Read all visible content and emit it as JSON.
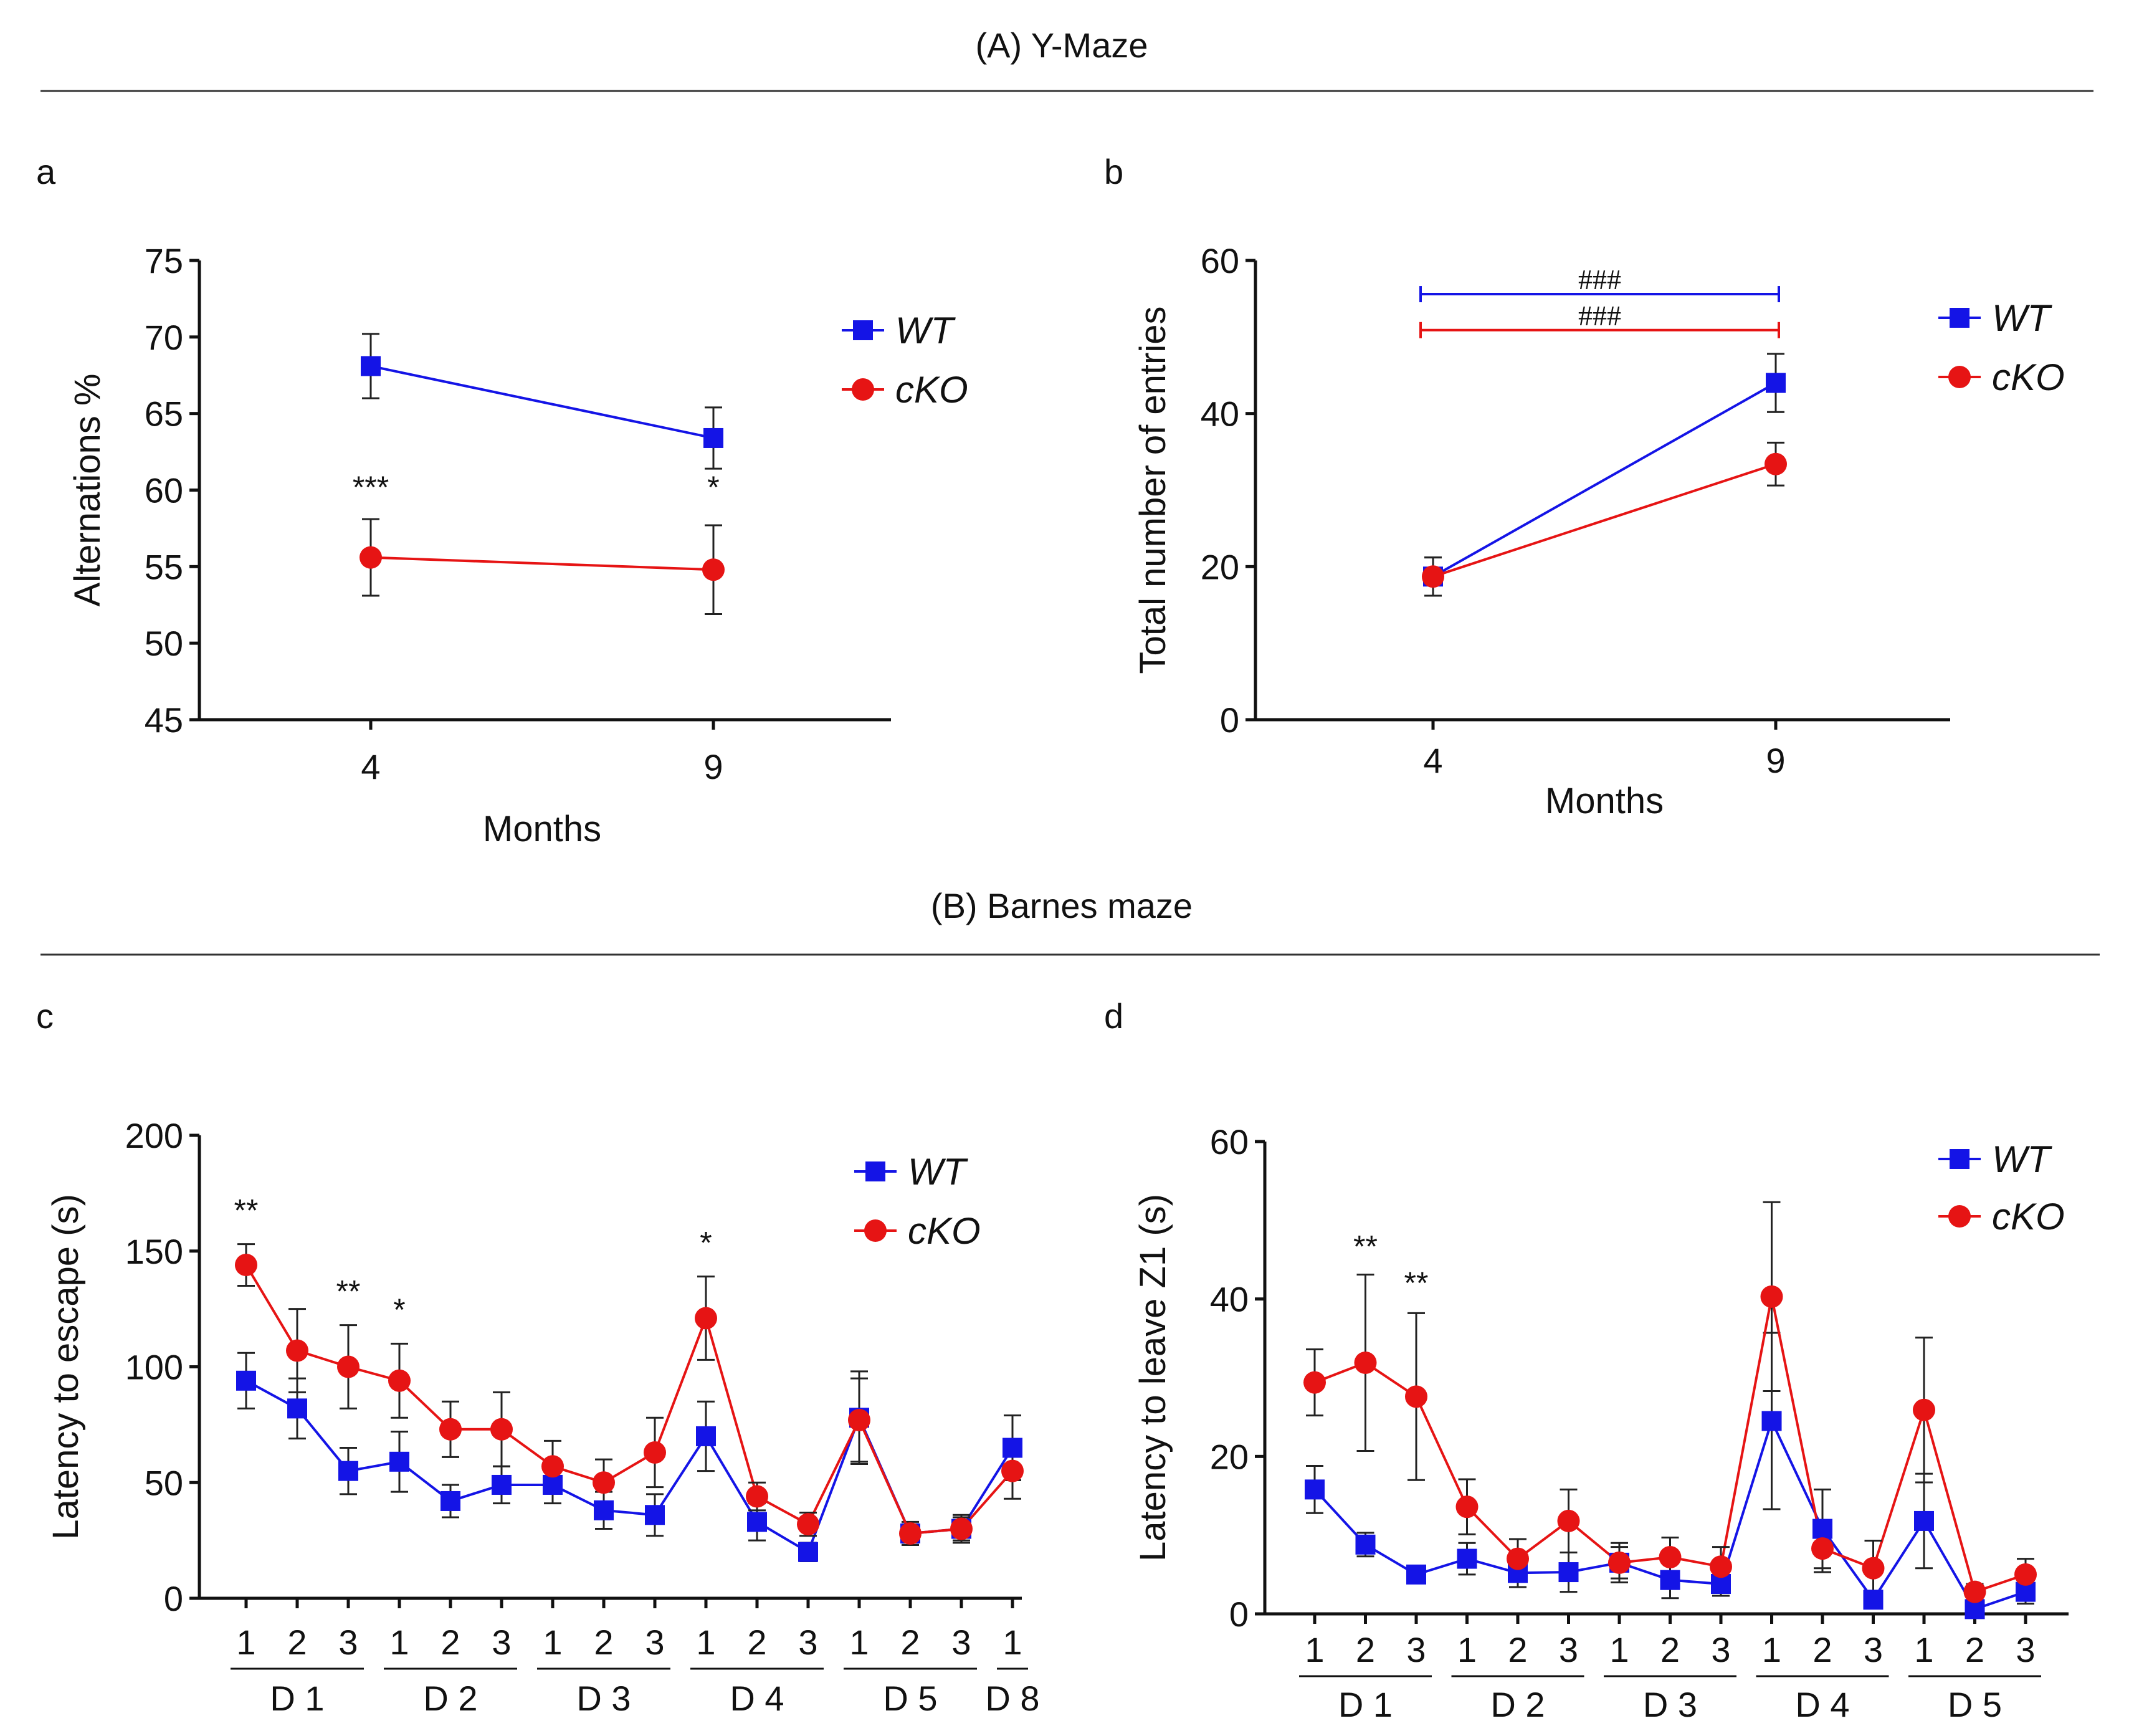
{
  "sections": [
    {
      "title": "(A) Y-Maze"
    },
    {
      "title": "(B) Barnes maze"
    }
  ],
  "colors": {
    "wt": "#1414e6",
    "cko": "#e61414"
  },
  "chart_data": [
    {
      "panel": "a",
      "type": "line",
      "xlabel": "Months",
      "ylabel": "Alternations %",
      "categories": [
        "4",
        "9"
      ],
      "ylim": [
        45,
        75
      ],
      "yticks": [
        "45",
        "50",
        "55",
        "60",
        "65",
        "70",
        "75"
      ],
      "legend": [
        "WT",
        "cKO"
      ],
      "legend_position": "top-right",
      "series": [
        {
          "name": "WT",
          "marker": "square",
          "values": [
            68.1,
            63.4
          ],
          "err": [
            2.1,
            2.0
          ]
        },
        {
          "name": "cKO",
          "marker": "circle",
          "values": [
            55.6,
            54.8
          ],
          "err": [
            2.5,
            2.9
          ]
        }
      ],
      "annotations": [
        {
          "text": "***",
          "category": 0,
          "value": 59.5
        },
        {
          "text": "*",
          "category": 1,
          "value": 59.5
        }
      ]
    },
    {
      "panel": "b",
      "type": "line",
      "xlabel": "Months",
      "ylabel": "Total number of entries",
      "categories": [
        "4",
        "9"
      ],
      "ylim": [
        0,
        60
      ],
      "yticks": [
        "0",
        "20",
        "40",
        "60"
      ],
      "legend": [
        "WT",
        "cKO"
      ],
      "legend_position": "top-right",
      "series": [
        {
          "name": "WT",
          "marker": "square",
          "values": [
            18.7,
            44.0
          ],
          "err": [
            2.5,
            3.8
          ]
        },
        {
          "name": "cKO",
          "marker": "circle",
          "values": [
            18.7,
            33.4
          ],
          "err": [
            2.5,
            2.8
          ]
        }
      ],
      "brackets": [
        {
          "text": "###",
          "series": "WT",
          "value": 55.6
        },
        {
          "text": "###",
          "series": "cKO",
          "value": 50.9
        }
      ]
    },
    {
      "panel": "c",
      "type": "line",
      "xlabel": "",
      "ylabel": "Latency to escape (s)",
      "categories": [
        "1",
        "2",
        "3",
        "1",
        "2",
        "3",
        "1",
        "2",
        "3",
        "1",
        "2",
        "3",
        "1",
        "2",
        "3",
        "1"
      ],
      "groups": [
        {
          "label": "D 1",
          "from": 0,
          "to": 2
        },
        {
          "label": "D 2",
          "from": 3,
          "to": 5
        },
        {
          "label": "D 3",
          "from": 6,
          "to": 8
        },
        {
          "label": "D 4",
          "from": 9,
          "to": 11
        },
        {
          "label": "D 5",
          "from": 12,
          "to": 14
        },
        {
          "label": "D 8",
          "from": 15,
          "to": 15
        }
      ],
      "ylim": [
        0,
        200
      ],
      "yticks": [
        "0",
        "50",
        "100",
        "150",
        "200"
      ],
      "legend": [
        "WT",
        "cKO"
      ],
      "legend_position": "top-right",
      "series": [
        {
          "name": "WT",
          "marker": "square",
          "values": [
            94,
            82,
            55,
            59,
            42,
            49,
            49,
            38,
            36,
            70,
            33,
            20,
            78,
            28,
            30,
            65
          ],
          "err": [
            12,
            13,
            10,
            13,
            7,
            8,
            8,
            8,
            9,
            15,
            8,
            4,
            20,
            5,
            6,
            14
          ]
        },
        {
          "name": "cKO",
          "marker": "circle",
          "values": [
            144,
            107,
            100,
            94,
            73,
            73,
            57,
            50,
            63,
            121,
            44,
            32,
            77,
            28,
            30,
            55
          ],
          "err": [
            9,
            18,
            18,
            16,
            12,
            16,
            11,
            10,
            15,
            18,
            6,
            5,
            18,
            4,
            5,
            12
          ]
        }
      ],
      "annotations": [
        {
          "text": "**",
          "category": 0,
          "value": 163
        },
        {
          "text": "**",
          "category": 2,
          "value": 128
        },
        {
          "text": "*",
          "category": 3,
          "value": 120
        },
        {
          "text": "*",
          "category": 9,
          "value": 149
        }
      ]
    },
    {
      "panel": "d",
      "type": "line",
      "xlabel": "",
      "ylabel": "Latency to leave Z1 (s)",
      "categories": [
        "1",
        "2",
        "3",
        "1",
        "2",
        "3",
        "1",
        "2",
        "3",
        "1",
        "2",
        "3",
        "1",
        "2",
        "3"
      ],
      "groups": [
        {
          "label": "D 1",
          "from": 0,
          "to": 2
        },
        {
          "label": "D 2",
          "from": 3,
          "to": 5
        },
        {
          "label": "D 3",
          "from": 6,
          "to": 8
        },
        {
          "label": "D 4",
          "from": 9,
          "to": 11
        },
        {
          "label": "D 5",
          "from": 12,
          "to": 14
        }
      ],
      "ylim": [
        0,
        60
      ],
      "yticks": [
        "0",
        "20",
        "40",
        "60"
      ],
      "legend": [
        "WT",
        "cKO"
      ],
      "legend_position": "top-right",
      "series": [
        {
          "name": "WT",
          "marker": "square",
          "values": [
            15.8,
            8.8,
            5.0,
            7.0,
            5.2,
            5.3,
            6.5,
            4.3,
            3.8,
            24.5,
            10.8,
            1.8,
            11.8,
            0.6,
            2.8
          ],
          "err": [
            3.0,
            1.5,
            0.8,
            2.0,
            1.8,
            2.5,
            2.0,
            2.3,
            1.5,
            11.2,
            5.0,
            1.0,
            6.0,
            0.5,
            1.5
          ]
        },
        {
          "name": "cKO",
          "marker": "circle",
          "values": [
            29.4,
            31.9,
            27.6,
            13.6,
            7.0,
            11.8,
            6.5,
            7.2,
            6.0,
            40.3,
            8.3,
            5.8,
            25.9,
            2.8,
            5.0
          ],
          "err": [
            4.2,
            11.2,
            10.6,
            3.5,
            2.5,
            4.0,
            2.5,
            2.5,
            2.5,
            12.0,
            3.0,
            3.5,
            9.2,
            1.0,
            2.0
          ]
        }
      ],
      "annotations": [
        {
          "text": "**",
          "category": 1,
          "value": 45.3
        },
        {
          "text": "**",
          "category": 2,
          "value": 40.7
        }
      ]
    }
  ]
}
